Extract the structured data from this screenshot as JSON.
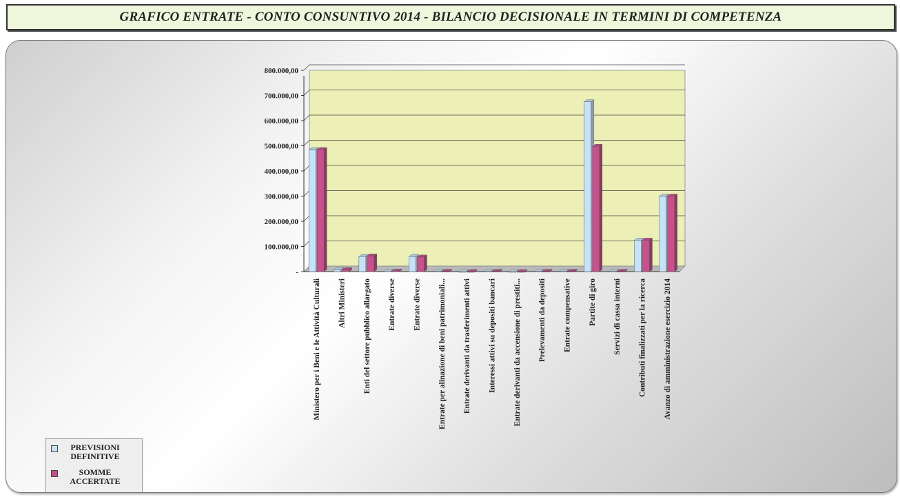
{
  "header": {
    "title": "GRAFICO ENTRATE - CONTO CONSUNTIVO 2014 - BILANCIO DECISIONALE IN TERMINI DI COMPETENZA"
  },
  "colors": {
    "previsioni": "#c6e2f8",
    "somme": "#c8508c",
    "plot_bg": "#ecefb6",
    "axis": "#555555"
  },
  "chart_data": {
    "type": "bar",
    "title": "GRAFICO ENTRATE - CONTO CONSUNTIVO 2014 - BILANCIO DECISIONALE IN TERMINI DI COMPETENZA",
    "xlabel": "",
    "ylabel": "",
    "ylim": [
      0,
      800000
    ],
    "yticks": [
      0,
      100000,
      200000,
      300000,
      400000,
      500000,
      600000,
      700000,
      800000
    ],
    "ytick_labels": [
      "-",
      "100.000,00",
      "200.000,00",
      "300.000,00",
      "400.000,00",
      "500.000,00",
      "600.000,00",
      "700.000,00",
      "800.000,00"
    ],
    "grid": true,
    "legend_position": "bottom-left",
    "categories": [
      "Ministero per i Beni e le Attività Culturali",
      "Altri Ministeri",
      "Enti del settore pubblico allargato",
      "Entrate diverse",
      "Entrate diverse",
      "Entrate per alinazione di beni patrimoniali...",
      "Entrate derivanti da trasferimenti attivi",
      "Interessi attivi su depositi bancari",
      "Entrate derivanti da accensione di prestiti...",
      "Prelevamenti da depositi",
      "Entrate compensative",
      "Partite di giro",
      "Servizi di cassa interni",
      "Contributi finalizzati per la ricerca",
      "Avanzo di amministrazione esercizio 2014"
    ],
    "series": [
      {
        "name": "PREVISIONI DEFINITIVE",
        "values": [
          485000,
          8000,
          60000,
          2000,
          60000,
          1000,
          0,
          1000,
          0,
          1000,
          1000,
          675000,
          1000,
          125000,
          300000
        ]
      },
      {
        "name": "SOMME ACCERTATE",
        "values": [
          485000,
          8000,
          62000,
          2000,
          58000,
          1000,
          0,
          1000,
          0,
          1000,
          1000,
          498000,
          1000,
          125000,
          300000
        ]
      }
    ]
  }
}
